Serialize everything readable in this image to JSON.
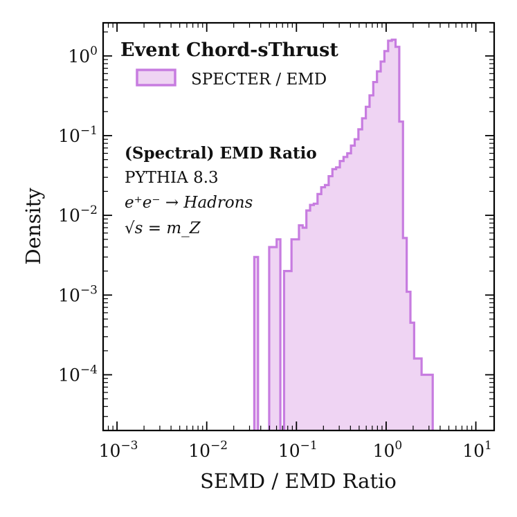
{
  "chart_data": {
    "type": "histogram",
    "title": "Event Chord-sThrust",
    "xlabel": "SEMD / EMD Ratio",
    "ylabel": "Density",
    "xscale": "log",
    "yscale": "log",
    "xlim": [
      0.0007,
      16
    ],
    "ylim": [
      2e-05,
      2.6
    ],
    "x_ticks": [
      {
        "value": 0.001,
        "base": "10",
        "exp": "−3"
      },
      {
        "value": 0.01,
        "base": "10",
        "exp": "−2"
      },
      {
        "value": 0.1,
        "base": "10",
        "exp": "−1"
      },
      {
        "value": 1,
        "base": "10",
        "exp": "0"
      },
      {
        "value": 10,
        "base": "10",
        "exp": "1"
      }
    ],
    "y_ticks": [
      {
        "value": 0.0001,
        "base": "10",
        "exp": "−4"
      },
      {
        "value": 0.001,
        "base": "10",
        "exp": "−3"
      },
      {
        "value": 0.01,
        "base": "10",
        "exp": "−2"
      },
      {
        "value": 0.1,
        "base": "10",
        "exp": "−1"
      },
      {
        "value": 1,
        "base": "10",
        "exp": "0"
      }
    ],
    "legend": {
      "location": "top-left",
      "entries": [
        "SPECTER / EMD"
      ]
    },
    "annotations": {
      "heading": "(Spectral) EMD Ratio",
      "generator": "PYTHIA 8.3",
      "process": "e⁺e⁻ → Hadrons",
      "energy": "√s = m_Z"
    },
    "series": [
      {
        "name": "SPECTER / EMD",
        "color": "#c77ce0",
        "fill": "#efd4f3",
        "bin_edges": [
          0.0339,
          0.0373,
          0.0411,
          0.0452,
          0.0497,
          0.0547,
          0.0602,
          0.0662,
          0.0728,
          0.0801,
          0.0881,
          0.097,
          0.1067,
          0.1173,
          0.1291,
          0.142,
          0.1562,
          0.1719,
          0.1891,
          0.208,
          0.2288,
          0.2517,
          0.2769,
          0.3046,
          0.3351,
          0.3686,
          0.4055,
          0.4461,
          0.4907,
          0.5398,
          0.5938,
          0.6532,
          0.7186,
          0.7905,
          0.8696,
          0.9566,
          1.0523,
          1.1577,
          1.2735,
          1.4009,
          1.5411,
          1.6953,
          1.865,
          2.0516,
          2.2569,
          2.4827,
          2.7311,
          3.0044,
          3.305
        ],
        "values": [
          0.003,
          0,
          0,
          0,
          0.004,
          0.004,
          0.005,
          0,
          0.002,
          0.002,
          0.005,
          0.005,
          0.0075,
          0.007,
          0.0115,
          0.0135,
          0.014,
          0.0185,
          0.0225,
          0.024,
          0.031,
          0.038,
          0.04,
          0.048,
          0.054,
          0.06,
          0.075,
          0.09,
          0.12,
          0.165,
          0.23,
          0.32,
          0.47,
          0.64,
          0.85,
          1.15,
          1.55,
          1.6,
          1.3,
          0.15,
          0.0052,
          0.0011,
          0.00045,
          0.00016,
          0.00016,
          0.0001,
          0.0001,
          0.0001
        ]
      }
    ]
  }
}
